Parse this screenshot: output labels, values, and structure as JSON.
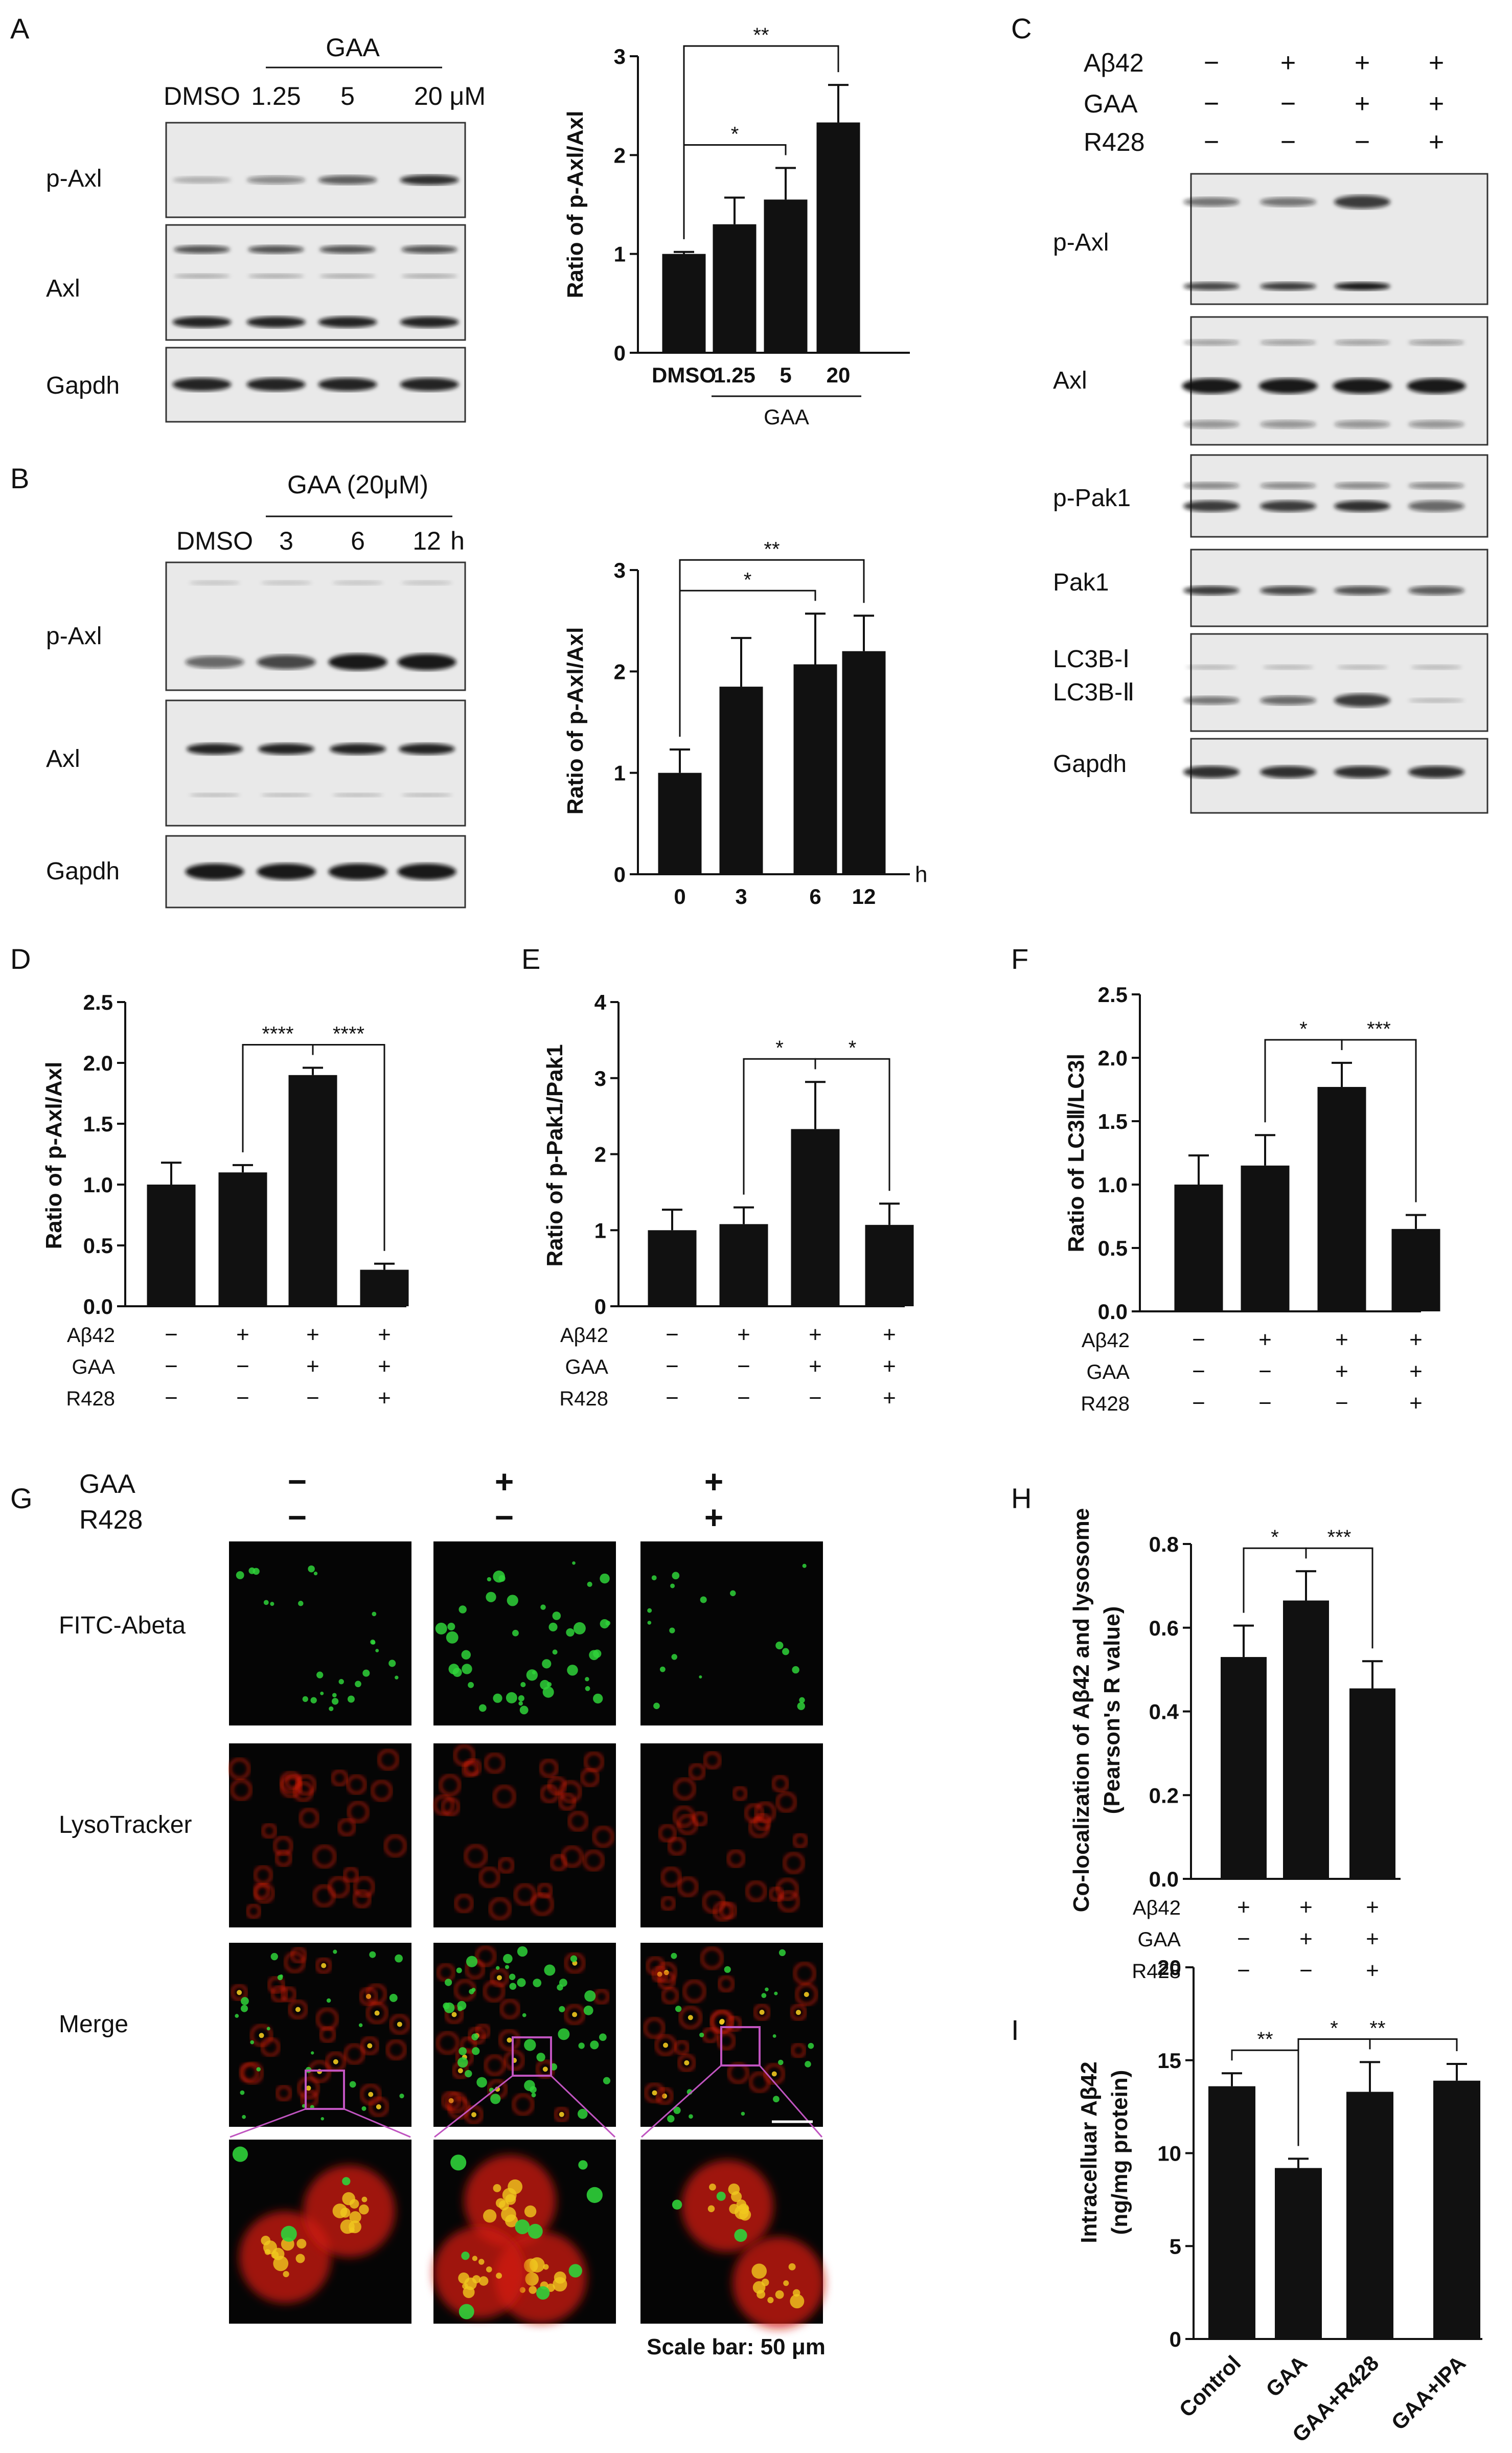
{
  "panel_letters": [
    "A",
    "B",
    "C",
    "D",
    "E",
    "F",
    "G",
    "H",
    "I"
  ],
  "blots": {
    "A": {
      "header": "GAA",
      "lanes": [
        "DMSO",
        "1.25",
        "5",
        "20 μM"
      ],
      "rows": [
        "p-Axl",
        "Axl",
        "Gapdh"
      ]
    },
    "B": {
      "header": "GAA (20μM)",
      "lanes": [
        "DMSO",
        "3",
        "6",
        "12",
        "h"
      ],
      "rows": [
        "p-Axl",
        "Axl",
        "Gapdh"
      ]
    },
    "C": {
      "treatments": [
        {
          "name": "Aβ42",
          "signs": [
            "−",
            "+",
            "+",
            "+"
          ]
        },
        {
          "name": "GAA",
          "signs": [
            "−",
            "−",
            "+",
            "+"
          ]
        },
        {
          "name": "R428",
          "signs": [
            "−",
            "−",
            "−",
            "+"
          ]
        }
      ],
      "rows": [
        "p-Axl",
        "Axl",
        "p-Pak1",
        "Pak1",
        "LC3B-Ⅰ",
        "LC3B-Ⅱ",
        "Gapdh"
      ]
    }
  },
  "microscopy": {
    "treatments": [
      {
        "name": "GAA",
        "signs": [
          "−",
          "+",
          "+"
        ]
      },
      {
        "name": "R428",
        "signs": [
          "−",
          "−",
          "+"
        ]
      }
    ],
    "rows": [
      "FITC-Abeta",
      "LysoTracker",
      "Merge"
    ],
    "scale_bar": "Scale bar: 50 μm"
  },
  "colors": {
    "bar": "#111111",
    "green": "#2fd23a",
    "red": "#d21a12",
    "yellow": "#f0c81e",
    "box": "#c054c0"
  },
  "chart_data": [
    {
      "panel": "A",
      "type": "bar",
      "categories": [
        "DMSO",
        "1.25",
        "5",
        "20"
      ],
      "values": [
        1.0,
        1.3,
        1.55,
        2.33
      ],
      "errors": [
        0.02,
        0.27,
        0.32,
        0.38
      ],
      "ylabel": "Ratio of p-Axl/Axl",
      "ylim": [
        0,
        3
      ],
      "yticks": [
        "0",
        "1",
        "2",
        "3"
      ],
      "group_label": "GAA",
      "group_range": [
        1,
        3
      ],
      "signs": [],
      "sig": [
        {
          "from": 0,
          "to": 2,
          "label": "*"
        },
        {
          "from": 0,
          "to": 3,
          "label": "**"
        }
      ]
    },
    {
      "panel": "B",
      "type": "bar",
      "categories": [
        "0",
        "3",
        "6",
        "12"
      ],
      "values": [
        1.0,
        1.85,
        2.07,
        2.2
      ],
      "errors": [
        0.23,
        0.48,
        0.5,
        0.35
      ],
      "ylabel": "Ratio of p-Axl/Axl",
      "ylim": [
        0,
        3
      ],
      "yticks": [
        "0",
        "1",
        "2",
        "3"
      ],
      "unit": "h",
      "signs": [],
      "sig": [
        {
          "from": 0,
          "to": 2,
          "label": "*"
        },
        {
          "from": 0,
          "to": 3,
          "label": "**"
        }
      ]
    },
    {
      "panel": "D",
      "type": "bar",
      "categories": [
        "1",
        "2",
        "3",
        "4"
      ],
      "values": [
        1.0,
        1.1,
        1.9,
        0.3
      ],
      "errors": [
        0.18,
        0.06,
        0.06,
        0.05
      ],
      "ylabel": "Ratio of p-Axl/Axl",
      "ylim": [
        0,
        2.5
      ],
      "yticks": [
        "0.0",
        "0.5",
        "1.0",
        "1.5",
        "2.0",
        "2.5"
      ],
      "signs": [
        {
          "name": "Aβ42",
          "signs": [
            "−",
            "+",
            "+",
            "+"
          ]
        },
        {
          "name": "GAA",
          "signs": [
            "−",
            "−",
            "+",
            "+"
          ]
        },
        {
          "name": "R428",
          "signs": [
            "−",
            "−",
            "−",
            "+"
          ]
        }
      ],
      "sig": [
        {
          "from": 1,
          "to": 2,
          "label": "****"
        },
        {
          "from": 2,
          "to": 3,
          "label": "****"
        }
      ]
    },
    {
      "panel": "E",
      "type": "bar",
      "categories": [
        "1",
        "2",
        "3",
        "4"
      ],
      "values": [
        1.0,
        1.08,
        2.33,
        1.07
      ],
      "errors": [
        0.27,
        0.22,
        0.62,
        0.28
      ],
      "ylabel": "Ratio of p-Pak1/Pak1",
      "ylim": [
        0,
        4
      ],
      "yticks": [
        "0",
        "1",
        "2",
        "3",
        "4"
      ],
      "signs": [
        {
          "name": "Aβ42",
          "signs": [
            "−",
            "+",
            "+",
            "+"
          ]
        },
        {
          "name": "GAA",
          "signs": [
            "−",
            "−",
            "+",
            "+"
          ]
        },
        {
          "name": "R428",
          "signs": [
            "−",
            "−",
            "−",
            "+"
          ]
        }
      ],
      "sig": [
        {
          "from": 1,
          "to": 2,
          "label": "*"
        },
        {
          "from": 2,
          "to": 3,
          "label": "*"
        }
      ]
    },
    {
      "panel": "F",
      "type": "bar",
      "categories": [
        "1",
        "2",
        "3",
        "4"
      ],
      "values": [
        1.0,
        1.15,
        1.77,
        0.65
      ],
      "errors": [
        0.23,
        0.24,
        0.19,
        0.11
      ],
      "ylabel": "Ratio of LC3Ⅱ/LC3Ⅰ",
      "ylim": [
        0,
        2.5
      ],
      "yticks": [
        "0.0",
        "0.5",
        "1.0",
        "1.5",
        "2.0",
        "2.5"
      ],
      "signs": [
        {
          "name": "Aβ42",
          "signs": [
            "−",
            "+",
            "+",
            "+"
          ]
        },
        {
          "name": "GAA",
          "signs": [
            "−",
            "−",
            "+",
            "+"
          ]
        },
        {
          "name": "R428",
          "signs": [
            "−",
            "−",
            "−",
            "+"
          ]
        }
      ],
      "sig": [
        {
          "from": 1,
          "to": 2,
          "label": "*"
        },
        {
          "from": 2,
          "to": 3,
          "label": "***"
        }
      ]
    },
    {
      "panel": "H",
      "type": "bar",
      "categories": [
        "1",
        "2",
        "3"
      ],
      "values": [
        0.53,
        0.665,
        0.455
      ],
      "errors": [
        0.075,
        0.07,
        0.065
      ],
      "ylabel": "Co-localization of Aβ42 and lysosome",
      "ylabel2": "(Pearson's R value)",
      "ylim": [
        0,
        0.8
      ],
      "yticks": [
        "0.0",
        "0.2",
        "0.4",
        "0.6",
        "0.8"
      ],
      "signs": [
        {
          "name": "Aβ42",
          "signs": [
            "+",
            "+",
            "+"
          ]
        },
        {
          "name": "GAA",
          "signs": [
            "−",
            "+",
            "+"
          ]
        },
        {
          "name": "R428",
          "signs": [
            "−",
            "−",
            "+"
          ]
        }
      ],
      "sig": [
        {
          "from": 0,
          "to": 1,
          "label": "*"
        },
        {
          "from": 1,
          "to": 2,
          "label": "***"
        }
      ]
    },
    {
      "panel": "I",
      "type": "bar",
      "categories": [
        "Control",
        "GAA",
        "GAA+R428",
        "GAA+IPA"
      ],
      "values": [
        13.6,
        9.2,
        13.3,
        13.9
      ],
      "errors": [
        0.7,
        0.5,
        1.6,
        0.9
      ],
      "ylabel": "Intracelluar Aβ42",
      "ylabel2": "(ng/mg protein)",
      "ylim": [
        0,
        20
      ],
      "yticks": [
        "0",
        "5",
        "10",
        "15",
        "20"
      ],
      "signs": [],
      "sig": [
        {
          "from": 0,
          "to": 1,
          "label": "**"
        },
        {
          "from": 1,
          "to": 2,
          "label": "*"
        },
        {
          "from": 1,
          "to": 3,
          "label": "**"
        }
      ]
    }
  ]
}
